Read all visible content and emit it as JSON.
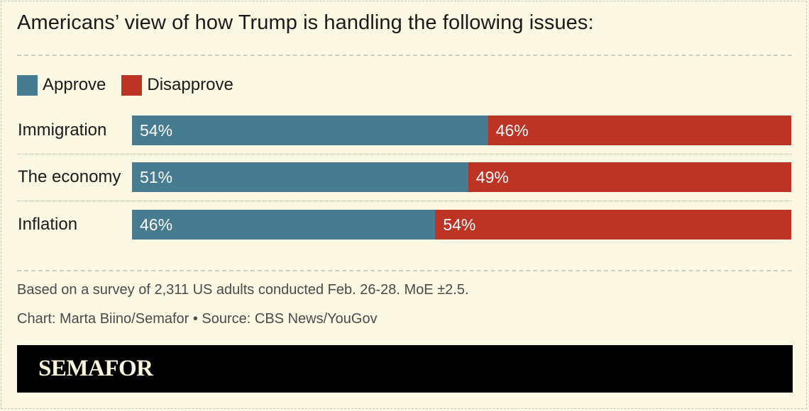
{
  "chart_data": {
    "type": "bar",
    "orientation": "horizontal",
    "stacked": true,
    "title": "Americans’ view of how Trump is handling the following issues:",
    "categories": [
      "Immigration",
      "The economy",
      "Inflation"
    ],
    "series": [
      {
        "name": "Approve",
        "values": [
          54,
          51,
          46
        ],
        "labels": [
          "54%",
          "51%",
          "46%"
        ],
        "color": "#467b90"
      },
      {
        "name": "Disapprove",
        "values": [
          46,
          49,
          54
        ],
        "labels": [
          "46%",
          "49%",
          "54%"
        ],
        "color": "#bd3424"
      }
    ],
    "xlim": [
      0,
      100
    ],
    "unit": "%",
    "legend": "top-left"
  },
  "footer": {
    "note": "Based on a survey of 2,311 US adults conducted Feb. 26-28. MoE ±2.5.",
    "credit": "Chart: Marta Biino/Semafor • Source: CBS News/YouGov"
  },
  "brand": {
    "name": "SEMAFOR"
  },
  "colors": {
    "background": "#fbf8e4",
    "approve": "#467b90",
    "disapprove": "#bd3424",
    "brand_bar": "#000000",
    "brand_text": "#fbf6dc"
  }
}
